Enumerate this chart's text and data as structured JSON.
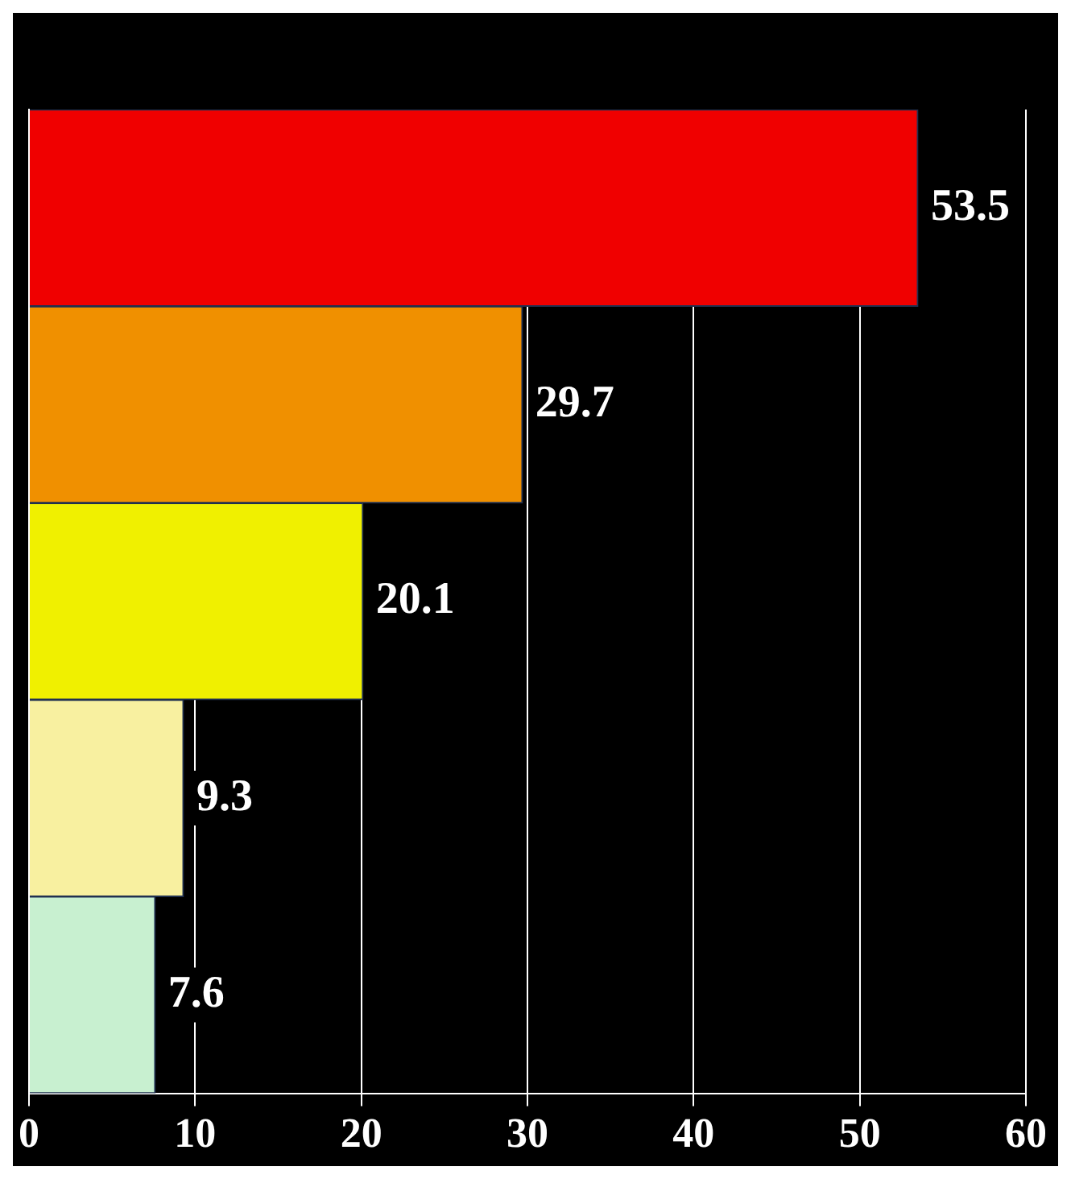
{
  "chart_data": {
    "type": "bar",
    "orientation": "horizontal",
    "categories": [
      null,
      null,
      null,
      null,
      null
    ],
    "values": [
      53.5,
      29.7,
      20.1,
      9.3,
      7.6
    ],
    "colors": [
      "#f00000",
      "#f09000",
      "#f0f000",
      "#f8f0a0",
      "#c8f0d0"
    ],
    "xlim": [
      0,
      60
    ],
    "xticks": [
      0,
      10,
      20,
      30,
      40,
      50,
      60
    ],
    "grid": "x",
    "data_labels": true
  }
}
